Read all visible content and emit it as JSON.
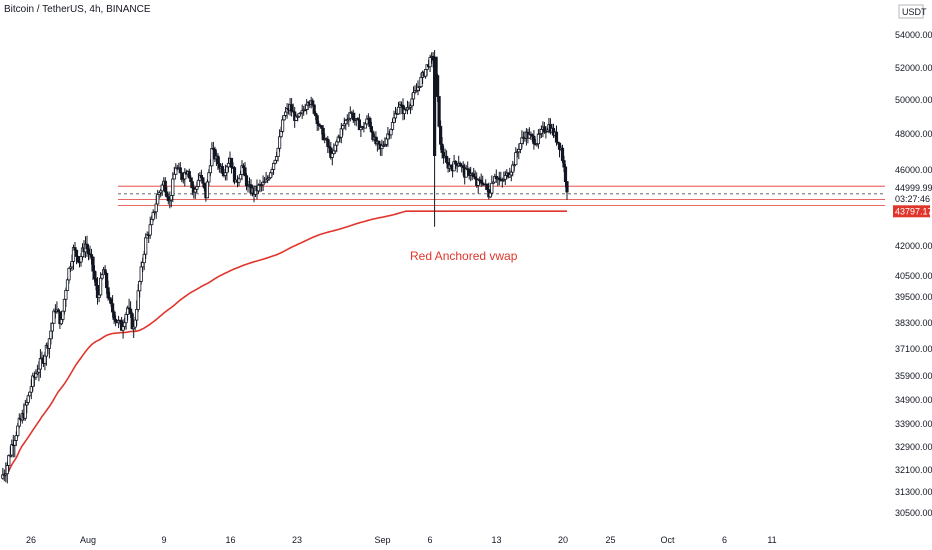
{
  "header": {
    "title": "Bitcoin / TetherUS, 4h, BINANCE",
    "currency": "USDT"
  },
  "colors": {
    "background": "#ffffff",
    "candle": "#131722",
    "vwap": "#e0352b",
    "level_line": "#e0352b",
    "axis_text": "#131722",
    "price_badge_bg": "#ffffff",
    "vwap_badge_bg": "#e0352b"
  },
  "chart_data": {
    "type": "candlestick",
    "title": "Bitcoin / TetherUS, 4h, BINANCE",
    "annotation": "Red Anchored vwap",
    "y_ticks": [
      54000,
      52000,
      50000,
      48000,
      46000,
      42000,
      40500,
      39500,
      38300,
      37100,
      35900,
      34900,
      33900,
      32900,
      32100,
      31300,
      30500
    ],
    "y_tick_labels": [
      "54000.00",
      "52000.00",
      "50000.00",
      "48000.00",
      "46000.00",
      "42000.00",
      "40500.00",
      "39500.00",
      "38300.00",
      "37100.00",
      "35900.00",
      "34900.00",
      "33900.00",
      "32900.00",
      "32100.00",
      "31300.00",
      "30500.00"
    ],
    "x_tick_labels": [
      "26",
      "Aug",
      "9",
      "16",
      "23",
      "Sep",
      "6",
      "13",
      "20",
      "25",
      "Oct",
      "6",
      "11"
    ],
    "x_tick_days": [
      0,
      6,
      14,
      21,
      28,
      37,
      42,
      49,
      56,
      61,
      67,
      73,
      78
    ],
    "last_price": "44999.99",
    "countdown": "03:27:46",
    "vwap_value": "43797.17",
    "levels": [
      45100,
      44400,
      44100
    ],
    "closes": [
      32300,
      33200,
      33900,
      34500,
      35500,
      36200,
      36700,
      37600,
      39000,
      38300,
      40500,
      41800,
      41300,
      42100,
      41200,
      39500,
      40800,
      39200,
      38500,
      38100,
      39000,
      38000,
      40200,
      42300,
      43200,
      44600,
      45300,
      44300,
      46200,
      45600,
      46100,
      44700,
      45700,
      44600,
      47100,
      46400,
      45900,
      46700,
      45200,
      46200,
      45000,
      44800,
      45100,
      45300,
      46200,
      47200,
      49100,
      49600,
      48800,
      49200,
      50100,
      49400,
      48300,
      47500,
      46700,
      47800,
      48600,
      49300,
      48700,
      48300,
      48900,
      47600,
      47100,
      47800,
      48600,
      49700,
      49300,
      49900,
      50600,
      51500,
      52300,
      52700,
      47300,
      46300,
      46200,
      46500,
      45800,
      45900,
      45200,
      45400,
      44700,
      45800,
      45300,
      45700,
      46200,
      47300,
      48000,
      47800,
      47600,
      48200,
      48500,
      47900,
      47200,
      45000
    ]
  }
}
